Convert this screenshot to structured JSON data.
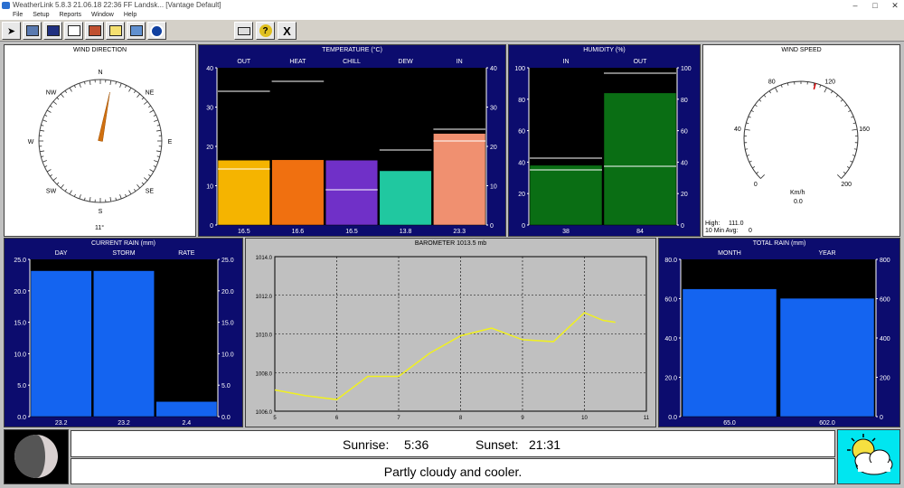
{
  "window": {
    "title": "WeatherLink 5.8.3 21.06.18 22:36 FF Landsk... [Vantage Default]",
    "minimize": "–",
    "maximize": "□",
    "close": "✕"
  },
  "menu": [
    "File",
    "Setup",
    "Reports",
    "Window",
    "Help"
  ],
  "toolbar_icons": [
    "station-icon",
    "bulletin-icon",
    "summary-icon",
    "browse-icon",
    "graph-icon",
    "notes-icon",
    "forecast-icon",
    "noaa-icon",
    "print-icon",
    "help-icon",
    "exit-icon"
  ],
  "toolbar_labels": {
    "help": "?",
    "exit": "X"
  },
  "wind_direction": {
    "title": "WIND DIRECTION",
    "compass": [
      "N",
      "NE",
      "E",
      "SE",
      "S",
      "SW",
      "W",
      "NW"
    ],
    "degrees_deg": 11,
    "readout": "11°"
  },
  "temperature": {
    "title": "TEMPERATURE (°C)",
    "columns": [
      "OUT",
      "HEAT",
      "CHILL",
      "DEW",
      "IN"
    ],
    "values": [
      16.5,
      16.6,
      16.5,
      13.8,
      23.3
    ],
    "value_labels": [
      "16.5",
      "16.6",
      "16.5",
      "13.8",
      "23.3"
    ],
    "ticks": [
      "40",
      "30",
      "20",
      "10",
      "0"
    ],
    "colors": [
      "#f5b400",
      "#f07010",
      "#7030c8",
      "#20c8a0",
      "#f09070"
    ]
  },
  "humidity": {
    "title": "HUMIDITY (%)",
    "columns": [
      "IN",
      "OUT"
    ],
    "values": [
      38,
      84
    ],
    "value_labels": [
      "38",
      "84"
    ],
    "ticks": [
      "100",
      "80",
      "60",
      "40",
      "20",
      "0"
    ]
  },
  "wind_speed": {
    "title": "WIND SPEED",
    "ticks": [
      "0",
      "40",
      "80",
      "120",
      "160",
      "200"
    ],
    "unit": "Km/h",
    "speed": "0.0",
    "high_label": "High:",
    "high_value": "111.0",
    "avg_label": "10 Min Avg:",
    "avg_value": "0"
  },
  "current_rain": {
    "title": "CURRENT RAIN (mm)",
    "columns": [
      "DAY",
      "STORM",
      "RATE"
    ],
    "values": [
      23.2,
      23.2,
      2.4
    ],
    "value_labels": [
      "23.2",
      "23.2",
      "2.4"
    ],
    "ticks": [
      "25.0",
      "20.0",
      "15.0",
      "10.0",
      "5.0",
      "0.0"
    ]
  },
  "barometer": {
    "title": "BAROMETER 1013.5 mb",
    "ticks_y": [
      "1014.0",
      "1012.0",
      "1010.0",
      "1008.0",
      "1006.0"
    ],
    "ticks_x": [
      "5",
      "6",
      "7",
      "8",
      "9",
      "10",
      "11"
    ]
  },
  "total_rain": {
    "title": "TOTAL RAIN (mm)",
    "columns": [
      "MONTH",
      "YEAR"
    ],
    "values": [
      65.0,
      602.0
    ],
    "value_labels": [
      "65.0",
      "602.0"
    ],
    "ticks_left": [
      "80.0",
      "60.0",
      "40.0",
      "20.0",
      "0.0"
    ],
    "ticks_right": [
      "800",
      "600",
      "400",
      "200",
      "0"
    ]
  },
  "sun": {
    "sunrise_label": "Sunrise:",
    "sunrise": "5:36",
    "sunset_label": "Sunset:",
    "sunset": "21:31"
  },
  "forecast": {
    "text": "Partly cloudy and cooler."
  },
  "chart_data": [
    {
      "type": "bar",
      "title": "TEMPERATURE (°C)",
      "categories": [
        "OUT",
        "HEAT",
        "CHILL",
        "DEW",
        "IN"
      ],
      "values": [
        16.5,
        16.6,
        16.5,
        13.8,
        23.3
      ],
      "ylim": [
        0,
        40
      ]
    },
    {
      "type": "bar",
      "title": "HUMIDITY (%)",
      "categories": [
        "IN",
        "OUT"
      ],
      "values": [
        38,
        84
      ],
      "ylim": [
        0,
        100
      ]
    },
    {
      "type": "bar",
      "title": "CURRENT RAIN (mm)",
      "categories": [
        "DAY",
        "STORM",
        "RATE"
      ],
      "values": [
        23.2,
        23.2,
        2.4
      ],
      "ylim": [
        0,
        25
      ]
    },
    {
      "type": "line",
      "title": "BAROMETER 1013.5 mb",
      "x": [
        5,
        5.5,
        6,
        6.5,
        7,
        7.5,
        8,
        8.5,
        9,
        9.5,
        10,
        10.3,
        10.5
      ],
      "y": [
        1007.1,
        1006.8,
        1006.6,
        1007.8,
        1007.8,
        1009.0,
        1009.9,
        1010.3,
        1009.7,
        1009.6,
        1011.1,
        1010.7,
        1010.6
      ],
      "xlim": [
        5,
        11
      ],
      "ylim": [
        1006,
        1014
      ]
    },
    {
      "type": "bar",
      "title": "TOTAL RAIN (mm)",
      "categories": [
        "MONTH",
        "YEAR"
      ],
      "values": [
        65.0,
        602.0
      ]
    }
  ]
}
